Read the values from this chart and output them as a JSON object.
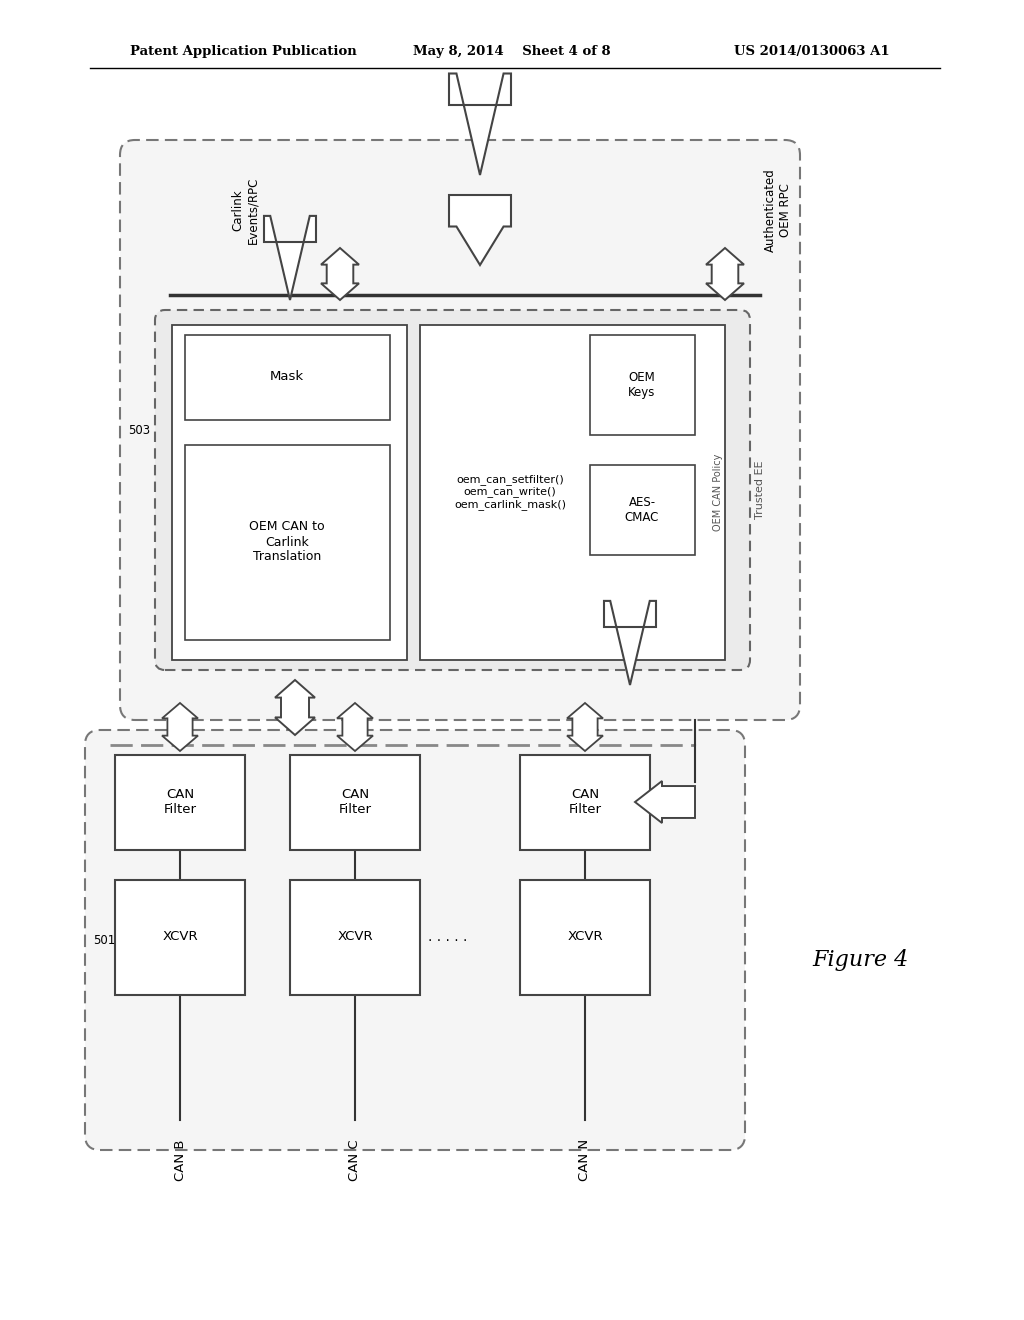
{
  "background_color": "#ffffff",
  "header_left": "Patent Application Publication",
  "header_center": "May 8, 2014    Sheet 4 of 8",
  "header_right": "US 2014/0130063 A1",
  "figure_label": "Figure 4"
}
